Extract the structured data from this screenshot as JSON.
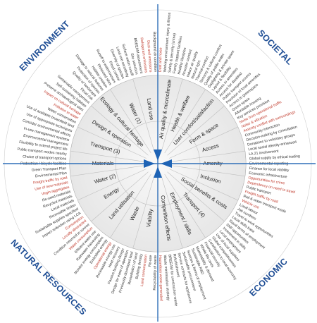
{
  "quadrants": {
    "environment": "ENVIRONMENT",
    "societal": "SOCIETAL",
    "natural_resources": "NATURAL RESOURCES",
    "economic": "ECONOMIC"
  },
  "colors": {
    "axis": "#2f6fb8",
    "arrow": "#1e63b5",
    "quadrant_text": "#1f4e95",
    "detail_text": "#333333",
    "highlight_text": "#c0392b",
    "spoke": "#bfbfbf",
    "ring": "#9a9a9a",
    "center_fill": "#ececec"
  },
  "categories": [
    {
      "label": "Air quality & microclimate"
    },
    {
      "label": "Health & welfare"
    },
    {
      "label": "User comfort/satisfaction"
    },
    {
      "label": "Form & space"
    },
    {
      "label": "Access"
    },
    {
      "label": "Amenity"
    },
    {
      "label": "Inclusion"
    },
    {
      "label": "Social benefits & costs"
    },
    {
      "label": "Transport (4)"
    },
    {
      "label": "Employment / skills"
    },
    {
      "label": "Competition effects"
    },
    {
      "label": "Viability"
    },
    {
      "label": "Waste"
    },
    {
      "label": "Land utilisation"
    },
    {
      "label": "Energy"
    },
    {
      "label": "Water (2)"
    },
    {
      "label": "Materials"
    },
    {
      "label": "Transport (3)"
    },
    {
      "label": "Design & operation"
    },
    {
      "label": "Ecology & cultural heritage"
    },
    {
      "label": "Water (1)"
    },
    {
      "label": "Land use"
    }
  ],
  "details": [
    {
      "text": "Dust and noise",
      "highlight": true
    },
    {
      "text": "Working environment, injury & illness",
      "highlight": false
    },
    {
      "text": "Safety & security (crime)",
      "highlight": false
    },
    {
      "text": "Family support facilities",
      "highlight": false
    },
    {
      "text": "Healthy lifestyles",
      "highlight": false
    },
    {
      "text": "Acoustic comfort",
      "highlight": false
    },
    {
      "text": "Indoor air quality",
      "highlight": false
    },
    {
      "text": "Natural light",
      "highlight": false
    },
    {
      "text": "Thermal comfort",
      "highlight": false
    },
    {
      "text": "Sensory & cultural comfort",
      "highlight": false
    },
    {
      "text": "Quality of public realm",
      "highlight": false
    },
    {
      "text": "Daylighting & private space",
      "highlight": false
    },
    {
      "text": "Layout & flexibility",
      "highlight": false
    },
    {
      "text": "Access to amenities",
      "highlight": false
    },
    {
      "text": "Access for disabled",
      "highlight": false
    },
    {
      "text": "Public transport access",
      "highlight": false
    },
    {
      "text": "Provision of local amenities",
      "highlight": false
    },
    {
      "text": "Access to greenspace",
      "highlight": false
    },
    {
      "text": "Green space",
      "highlight": false
    },
    {
      "text": "Affordable housing",
      "highlight": false
    },
    {
      "text": "Key services provision",
      "highlight": false
    },
    {
      "text": "Noise from operational traffic",
      "highlight": true
    },
    {
      "text": "Noise & vibration",
      "highlight": true
    },
    {
      "text": "Amenity conflict with surroundings",
      "highlight": true
    },
    {
      "text": "Community interaction",
      "highlight": false
    },
    {
      "text": "Decision-making by consultation",
      "highlight": false
    },
    {
      "text": "Donations to voluntary groups",
      "highlight": false
    },
    {
      "text": "Local social identity enhanced",
      "highlight": false
    },
    {
      "text": "LA 21 involvement",
      "highlight": false
    },
    {
      "text": "Global supply by ethical trading",
      "highlight": false
    },
    {
      "text": "Environmental reporting",
      "highlight": false
    },
    {
      "text": "Finance for local viability",
      "highlight": false
    },
    {
      "text": "Economic infrastructure",
      "highlight": false
    },
    {
      "text": "Opportunities for crime",
      "highlight": true
    },
    {
      "text": "Dependency on need to travel",
      "highlight": true
    },
    {
      "text": "Public transport",
      "highlight": false
    },
    {
      "text": "Freight traffic by road",
      "highlight": true
    },
    {
      "text": "Rail & water transport mode",
      "highlight": false
    },
    {
      "text": "Vehicle use",
      "highlight": true
    },
    {
      "text": "Local labour",
      "highlight": false
    },
    {
      "text": "Job numbers",
      "highlight": false
    },
    {
      "text": "Travel to work opportunities",
      "highlight": false
    },
    {
      "text": "Local skills base",
      "highlight": false
    },
    {
      "text": "Equal terms of employment",
      "highlight": false
    },
    {
      "text": "Skill opportunities",
      "highlight": false
    },
    {
      "text": "Investment in skills",
      "highlight": false
    },
    {
      "text": "Local employment",
      "highlight": false
    },
    {
      "text": "Use of local suppliers",
      "highlight": false
    },
    {
      "text": "Global competitiveness",
      "highlight": false
    },
    {
      "text": "Contribution to local economy",
      "highlight": false
    },
    {
      "text": "Financial security",
      "highlight": false
    },
    {
      "text": "Whole life costs",
      "highlight": false
    },
    {
      "text": "Marketability & demand",
      "highlight": false
    },
    {
      "text": "Sustainable R&D",
      "highlight": false
    },
    {
      "text": "Sources & forms of employment",
      "highlight": false
    },
    {
      "text": "Sustainable procurement",
      "highlight": false
    },
    {
      "text": "Service contracts for appliances",
      "highlight": false
    },
    {
      "text": "Refurbishment",
      "highlight": false
    },
    {
      "text": "BREEAM for construction waste",
      "highlight": false
    },
    {
      "text": "Waste minimisation strategy",
      "highlight": false
    },
    {
      "text": "Hazardous waste generated",
      "highlight": true
    },
    {
      "text": "Recyclability of waste",
      "highlight": false
    },
    {
      "text": "Re-use",
      "highlight": false
    },
    {
      "text": "Land contamination",
      "highlight": true
    },
    {
      "text": "Building density",
      "highlight": false
    },
    {
      "text": "Remediation of land",
      "highlight": false
    },
    {
      "text": "Previously developed land",
      "highlight": false
    },
    {
      "text": "Design for ease of operation",
      "highlight": false
    },
    {
      "text": "Passive building design",
      "highlight": false
    },
    {
      "text": "Heat recovery",
      "highlight": false
    },
    {
      "text": "Renewable energy use",
      "highlight": false
    },
    {
      "text": "Operational energy",
      "highlight": true
    },
    {
      "text": "Embodied energy",
      "highlight": false
    },
    {
      "text": "Monitor energy consumption",
      "highlight": false
    },
    {
      "text": "Rainwater harvesting",
      "highlight": false
    },
    {
      "text": "Efficient water use",
      "highlight": false
    },
    {
      "text": "Water consumption",
      "highlight": true
    },
    {
      "text": "Condition returned to source",
      "highlight": false
    },
    {
      "text": "Locally abstracted",
      "highlight": true
    },
    {
      "text": "Consumption",
      "highlight": true
    },
    {
      "text": "Impact reduction using LCA",
      "highlight": false
    },
    {
      "text": "Sustainable supplies specified",
      "highlight": false
    },
    {
      "text": "Renewable timber",
      "highlight": false
    },
    {
      "text": "Local materials",
      "highlight": false
    },
    {
      "text": "Recycled materials",
      "highlight": false
    },
    {
      "text": "Re-used materials",
      "highlight": false
    },
    {
      "text": "Virgin aggregates",
      "highlight": true
    },
    {
      "text": "Use of new materials",
      "highlight": true
    },
    {
      "text": "Freight traffic by road",
      "highlight": true
    },
    {
      "text": "Environmental Plan",
      "highlight": false
    },
    {
      "text": "Green Transport Plan",
      "highlight": false
    },
    {
      "text": "Pedestrian / bicycle facilities",
      "highlight": false
    },
    {
      "text": "Choice of transport options",
      "highlight": false
    },
    {
      "text": "Public transport modes nearby",
      "highlight": false
    },
    {
      "text": "Flexibility to extend project life",
      "highlight": false
    },
    {
      "text": "Environmental management",
      "highlight": false
    },
    {
      "text": "In-use management systems",
      "highlight": false
    },
    {
      "text": "Consider environmental effects",
      "highlight": false
    },
    {
      "text": "Use of appropriate techniques",
      "highlight": false
    },
    {
      "text": "Use of available brownfield land",
      "highlight": false
    },
    {
      "text": "Water conservation",
      "highlight": false
    },
    {
      "text": "Pollution to water",
      "highlight": true
    },
    {
      "text": "Impact on cultural heritage",
      "highlight": true
    },
    {
      "text": "Preserve archaeological sites",
      "highlight": false
    },
    {
      "text": "Self-sustaining habitats",
      "highlight": false
    },
    {
      "text": "Sustainable management",
      "highlight": false
    },
    {
      "text": "Flood risk",
      "highlight": false
    },
    {
      "text": "Quality of landscape",
      "highlight": false
    },
    {
      "text": "Protection of species",
      "highlight": false
    },
    {
      "text": "Damage to natural features",
      "highlight": false
    },
    {
      "text": "Habitat creation",
      "highlight": false
    },
    {
      "text": "Protected sites",
      "highlight": false
    },
    {
      "text": "Runoff to watercourses",
      "highlight": false
    },
    {
      "text": "Flood control",
      "highlight": false
    },
    {
      "text": "Diversity of species",
      "highlight": false
    },
    {
      "text": "Land use sensitivity",
      "highlight": false
    },
    {
      "text": "Surface water runoff",
      "highlight": false
    },
    {
      "text": "Site selection",
      "highlight": false
    },
    {
      "text": "BREEAM assessment",
      "highlight": false
    },
    {
      "text": "Refrigerant emissions",
      "highlight": true
    },
    {
      "text": "Dust and emissions",
      "highlight": true
    },
    {
      "text": "Background air condition",
      "highlight": false
    }
  ]
}
